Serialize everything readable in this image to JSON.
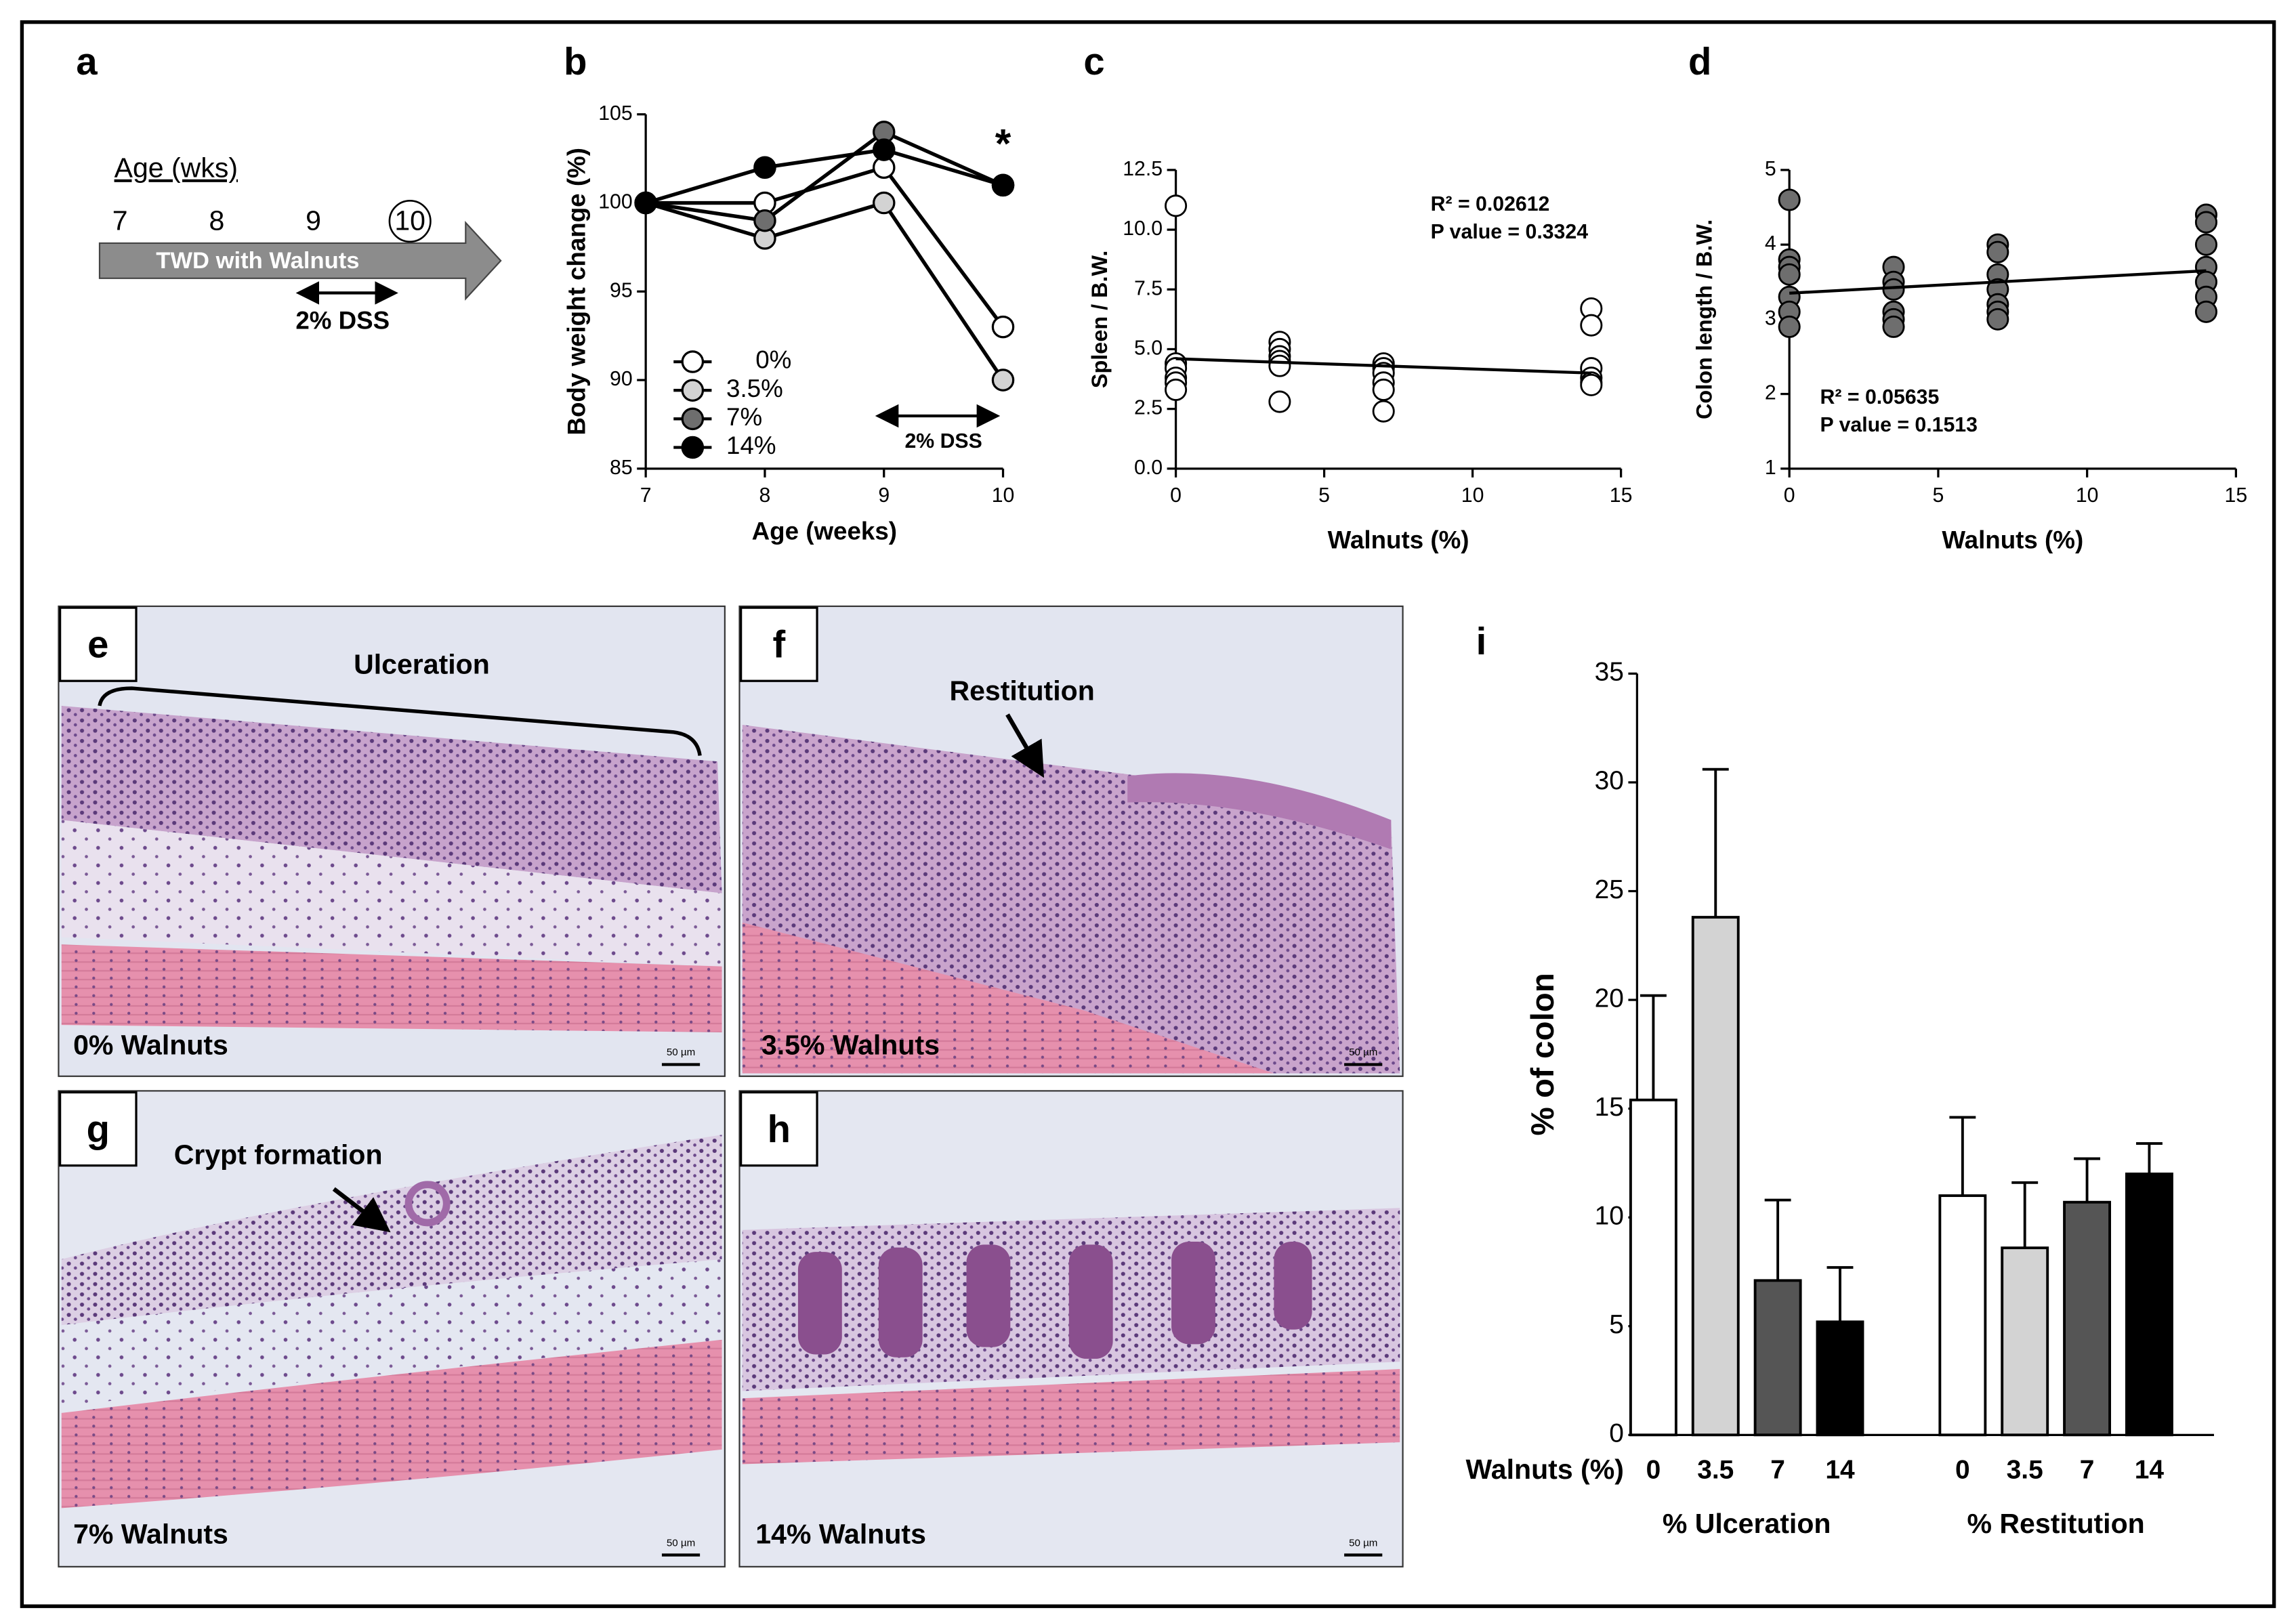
{
  "panel_labels": [
    "a",
    "b",
    "c",
    "d",
    "e",
    "f",
    "g",
    "h",
    "i"
  ],
  "timeline": {
    "axis_label": "Age (wks)",
    "ticks": [
      "7",
      "8",
      "9",
      "10"
    ],
    "arrow_label": "TWD with Walnuts",
    "dss_label": "2% DSS"
  },
  "micrographs": [
    {
      "annotation": "Ulceration",
      "caption": "0% Walnuts",
      "scale": "50 µm"
    },
    {
      "annotation": "Restitution",
      "caption": "3.5% Walnuts",
      "scale": "50 µm"
    },
    {
      "annotation": "Crypt formation",
      "caption": "7% Walnuts",
      "scale": "50 µm"
    },
    {
      "caption": "14% Walnuts",
      "scale": "50 µm"
    }
  ],
  "chart_data": [
    {
      "type": "line",
      "x": [
        7,
        8,
        9,
        10
      ],
      "xlim": [
        7,
        10
      ],
      "xticks": [
        7,
        8,
        9,
        10
      ],
      "ylim": [
        85,
        105
      ],
      "yticks": [
        85,
        90,
        95,
        100,
        105
      ],
      "xlabel": "Age (weeks)",
      "ylabel": "Body weight change (%)",
      "series": [
        {
          "name": "0%",
          "color": "#ffffff",
          "values": [
            100,
            100,
            102,
            93
          ]
        },
        {
          "name": "3.5%",
          "color": "#d3d3d3",
          "values": [
            100,
            98,
            100,
            90
          ]
        },
        {
          "name": "7%",
          "color": "#6e6e6e",
          "values": [
            100,
            99,
            104,
            101
          ]
        },
        {
          "name": "14%",
          "color": "#000000",
          "values": [
            100,
            102,
            103,
            101
          ]
        }
      ],
      "annotations": [
        "*",
        "2% DSS"
      ]
    },
    {
      "type": "scatter",
      "xlim": [
        0,
        15
      ],
      "xticks": [
        0,
        5,
        10,
        15
      ],
      "ylim": [
        0,
        12.5
      ],
      "yticks": [
        {
          "value": 0,
          "label": "0.0"
        },
        2.5,
        {
          "value": 5,
          "label": "5.0"
        },
        7.5,
        {
          "value": 10,
          "label": "10.0"
        },
        12.5
      ],
      "xlabel": "Walnuts (%)",
      "ylabel": "Spleen / B.W.",
      "series": [
        {
          "color": "#ffffff",
          "x": [
            0,
            0,
            0,
            0,
            0,
            0,
            3.5,
            3.5,
            3.5,
            3.5,
            3.5,
            3.5,
            7,
            7,
            7,
            7,
            7,
            7,
            14,
            14,
            14,
            14,
            14,
            14
          ],
          "values": [
            11.0,
            4.4,
            4.2,
            3.8,
            3.6,
            3.3,
            5.3,
            5.0,
            4.7,
            4.5,
            4.3,
            2.8,
            4.4,
            4.2,
            4.0,
            3.6,
            3.3,
            2.4,
            6.7,
            6.0,
            4.2,
            3.8,
            3.6,
            3.5
          ]
        }
      ],
      "fit": {
        "x": [
          0,
          14
        ],
        "values": [
          4.6,
          4.0
        ]
      },
      "annotations": [
        "R² = 0.02612",
        "P value = 0.3324"
      ]
    },
    {
      "type": "scatter",
      "xlim": [
        0,
        15
      ],
      "xticks": [
        0,
        5,
        10,
        15
      ],
      "ylim": [
        1,
        5
      ],
      "yticks": [
        1,
        2,
        3,
        4,
        5
      ],
      "xlabel": "Walnuts (%)",
      "ylabel": "Colon length / B.W.",
      "series": [
        {
          "color": "#6e6e6e",
          "x": [
            0,
            0,
            0,
            0,
            0,
            0,
            0,
            3.5,
            3.5,
            3.5,
            3.5,
            3.5,
            3.5,
            7,
            7,
            7,
            7,
            7,
            7,
            7,
            14,
            14,
            14,
            14,
            14,
            14,
            14
          ],
          "values": [
            4.6,
            3.8,
            3.7,
            3.6,
            3.3,
            3.1,
            2.9,
            3.7,
            3.5,
            3.4,
            3.1,
            3.0,
            2.9,
            4.0,
            3.9,
            3.6,
            3.4,
            3.2,
            3.1,
            3.0,
            4.4,
            4.3,
            4.0,
            3.7,
            3.5,
            3.3,
            3.1
          ]
        }
      ],
      "fit": {
        "x": [
          0,
          14
        ],
        "values": [
          3.35,
          3.65
        ]
      },
      "annotations": [
        "R² = 0.05635",
        "P value = 0.1513"
      ]
    },
    {
      "type": "bar",
      "categories": [
        "% Ulceration",
        "% Restitution"
      ],
      "xlabel": "Walnuts (%)",
      "ylabel": "% of colon",
      "ylim": [
        0,
        35
      ],
      "yticks": [
        0,
        5,
        10,
        15,
        20,
        25,
        30,
        35
      ],
      "series": [
        {
          "name": "0",
          "color": "#ffffff",
          "values": [
            15.4,
            11.0
          ],
          "errors": [
            4.8,
            3.6
          ]
        },
        {
          "name": "3.5",
          "color": "#d3d3d3",
          "values": [
            23.8,
            8.6
          ],
          "errors": [
            6.8,
            3.0
          ]
        },
        {
          "name": "7",
          "color": "#555555",
          "values": [
            7.1,
            10.7
          ],
          "errors": [
            3.7,
            2.0
          ]
        },
        {
          "name": "14",
          "color": "#000000",
          "values": [
            5.2,
            12.0
          ],
          "errors": [
            2.5,
            1.4
          ]
        }
      ]
    }
  ]
}
